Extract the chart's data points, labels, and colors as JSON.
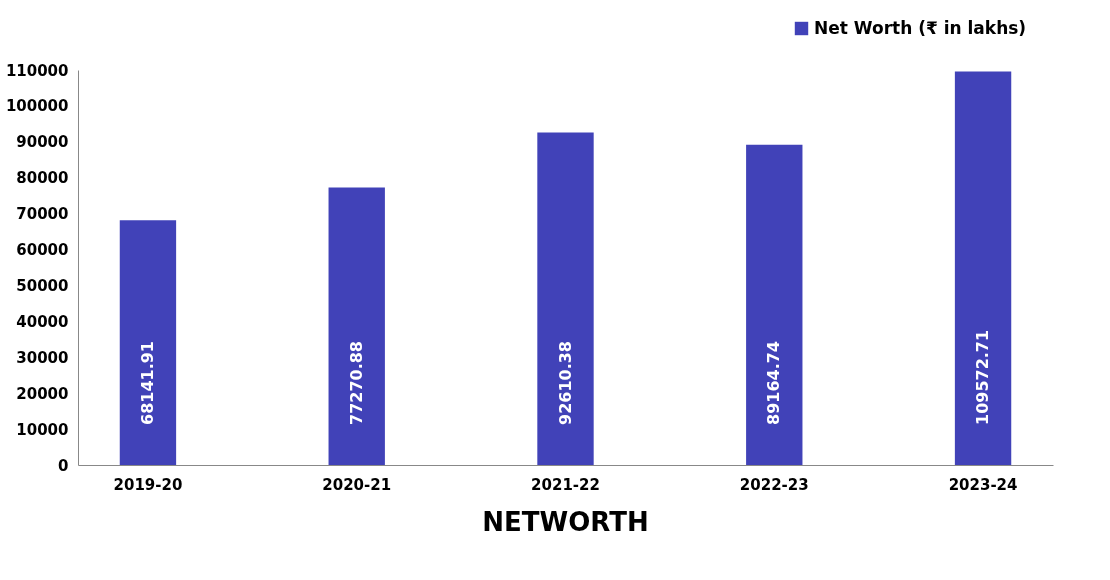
{
  "chart_data": {
    "type": "bar",
    "title": "NETWORTH",
    "categories": [
      "2019-20",
      "2020-21",
      "2021-22",
      "2022-23",
      "2023-24"
    ],
    "series": [
      {
        "name": "Net Worth (₹ in lakhs)",
        "color": "#4142b8",
        "values": [
          68141.91,
          77270.88,
          92610.38,
          89164.74,
          109572.71
        ]
      }
    ],
    "ylim": [
      0,
      110000
    ],
    "yticks": [
      0,
      10000,
      20000,
      30000,
      40000,
      50000,
      60000,
      70000,
      80000,
      90000,
      100000,
      110000
    ],
    "data_labels": true,
    "legend": "top right",
    "grid": false
  }
}
